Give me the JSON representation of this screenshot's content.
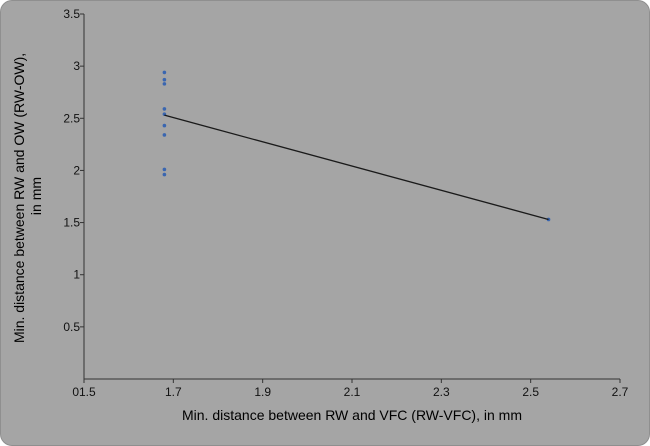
{
  "chart_data": {
    "type": "scatter",
    "title": "",
    "xlabel": "Min. distance between RW and VFC (RW-VFC), in mm",
    "ylabel_lines": [
      "Min. distance between RW and OW (RW-OW),",
      "in mm"
    ],
    "xlim": [
      1.5,
      2.7
    ],
    "ylim": [
      0,
      3.5
    ],
    "x_tick_labels": [
      "01.5",
      "1.7",
      "1.9",
      "2.1",
      "2.3",
      "2.5",
      "2.7"
    ],
    "x_tick_values": [
      1.5,
      1.7,
      1.9,
      2.1,
      2.3,
      2.5,
      2.7
    ],
    "y_tick_labels": [
      "0.5",
      "1",
      "1.5",
      "2",
      "2.5",
      "3",
      "3.5"
    ],
    "y_tick_values": [
      0.5,
      1,
      1.5,
      2,
      2.5,
      3,
      3.5
    ],
    "grid": false,
    "legend": "none",
    "series": [
      {
        "points": [
          {
            "x": 1.68,
            "y": 2.94
          },
          {
            "x": 1.68,
            "y": 2.87
          },
          {
            "x": 1.68,
            "y": 2.83
          },
          {
            "x": 1.68,
            "y": 2.59
          },
          {
            "x": 1.68,
            "y": 2.54
          },
          {
            "x": 1.68,
            "y": 2.43
          },
          {
            "x": 1.68,
            "y": 2.34
          },
          {
            "x": 1.68,
            "y": 2.01
          },
          {
            "x": 1.68,
            "y": 1.96
          },
          {
            "x": 2.54,
            "y": 1.53
          }
        ]
      }
    ],
    "trendline": {
      "x1": 1.68,
      "y1": 2.53,
      "x2": 2.54,
      "y2": 1.53
    },
    "colors": {
      "background": "#a5a5a5",
      "point": "#3a66b0",
      "line": "#1a1a1a",
      "axis": "#333333"
    }
  }
}
